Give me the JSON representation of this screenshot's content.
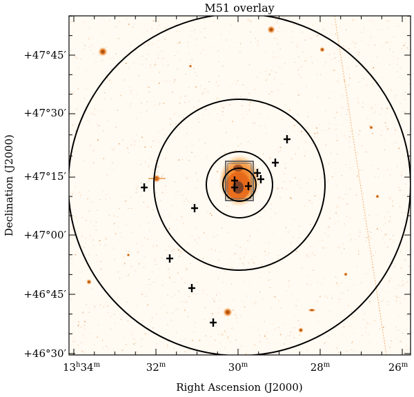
{
  "figure": {
    "title": "M51 overlay",
    "xlabel": "Right Ascension (J2000)",
    "ylabel": "Declination (J2000)",
    "x_ticks": [
      {
        "h": "13",
        "m": "34"
      },
      {
        "h": "",
        "m": "32"
      },
      {
        "h": "",
        "m": "30"
      },
      {
        "h": "",
        "m": "28"
      },
      {
        "h": "",
        "m": "26"
      }
    ],
    "y_ticks": [
      {
        "deg": "+47°45′"
      },
      {
        "deg": "+47°30′"
      },
      {
        "deg": "+47°15′"
      },
      {
        "deg": "+47°00′"
      },
      {
        "deg": "+46°45′"
      },
      {
        "deg": "+46°30′"
      }
    ],
    "colors": {
      "background": "#fffaf2",
      "galaxy": "#f07a1e",
      "stars": "#d9781f",
      "lines": "#000000"
    }
  }
}
